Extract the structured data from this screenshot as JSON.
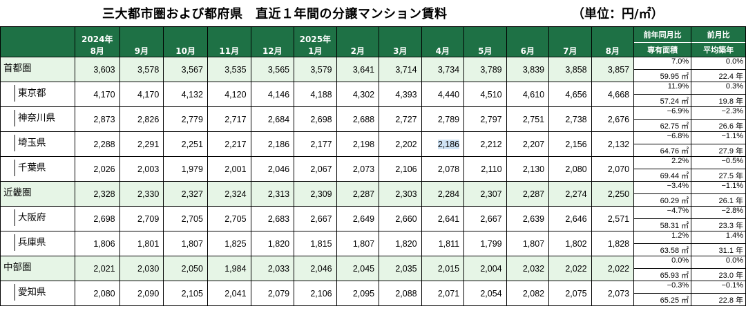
{
  "title": "三大都市圏および都府県　直近１年間の分譲マンション賃料",
  "unit": "（単位：円/㎡）",
  "header": {
    "months": [
      {
        "year": "2024年",
        "month": "8月"
      },
      {
        "year": "",
        "month": "9月"
      },
      {
        "year": "",
        "month": "10月"
      },
      {
        "year": "",
        "month": "11月"
      },
      {
        "year": "",
        "month": "12月"
      },
      {
        "year": "2025年",
        "month": "1月"
      },
      {
        "year": "",
        "month": "2月"
      },
      {
        "year": "",
        "month": "3月"
      },
      {
        "year": "",
        "month": "4月"
      },
      {
        "year": "",
        "month": "5月"
      },
      {
        "year": "",
        "month": "6月"
      },
      {
        "year": "",
        "month": "7月"
      },
      {
        "year": "",
        "month": "8月"
      }
    ],
    "yoy_label": "前年同月比",
    "mom_label": "前月比",
    "area_label": "専有面積",
    "age_label": "平均築年"
  },
  "rows": [
    {
      "name": "首都圏",
      "type": "region",
      "values": [
        "3,603",
        "3,578",
        "3,567",
        "3,535",
        "3,565",
        "3,579",
        "3,641",
        "3,714",
        "3,734",
        "3,789",
        "3,839",
        "3,858",
        "3,857"
      ],
      "yoy": "7.0%",
      "mom": "0.0%",
      "area": "59.95 ㎡",
      "age": "22.4 年"
    },
    {
      "name": "東京都",
      "type": "pref",
      "values": [
        "4,170",
        "4,170",
        "4,132",
        "4,120",
        "4,146",
        "4,188",
        "4,302",
        "4,393",
        "4,440",
        "4,510",
        "4,610",
        "4,656",
        "4,668"
      ],
      "yoy": "11.9%",
      "mom": "0.3%",
      "area": "57.24 ㎡",
      "age": "19.8 年"
    },
    {
      "name": "神奈川県",
      "type": "pref",
      "values": [
        "2,873",
        "2,826",
        "2,779",
        "2,717",
        "2,684",
        "2,698",
        "2,688",
        "2,727",
        "2,789",
        "2,797",
        "2,751",
        "2,738",
        "2,676"
      ],
      "yoy": "−6.9%",
      "mom": "−2.3%",
      "area": "62.75 ㎡",
      "age": "26.6 年"
    },
    {
      "name": "埼玉県",
      "type": "pref",
      "values": [
        "2,288",
        "2,291",
        "2,251",
        "2,217",
        "2,186",
        "2,177",
        "2,198",
        "2,202",
        "2,186",
        "2,212",
        "2,207",
        "2,156",
        "2,132"
      ],
      "yoy": "−6.8%",
      "mom": "−1.1%",
      "area": "64.76 ㎡",
      "age": "27.9 年"
    },
    {
      "name": "千葉県",
      "type": "pref",
      "values": [
        "2,026",
        "2,003",
        "1,979",
        "2,001",
        "2,046",
        "2,067",
        "2,073",
        "2,106",
        "2,078",
        "2,110",
        "2,130",
        "2,080",
        "2,070"
      ],
      "yoy": "2.2%",
      "mom": "−0.5%",
      "area": "69.44 ㎡",
      "age": "27.5 年"
    },
    {
      "name": "近畿圏",
      "type": "region",
      "values": [
        "2,328",
        "2,330",
        "2,327",
        "2,324",
        "2,313",
        "2,309",
        "2,287",
        "2,303",
        "2,284",
        "2,307",
        "2,287",
        "2,274",
        "2,250"
      ],
      "yoy": "−3.4%",
      "mom": "−1.1%",
      "area": "60.29 ㎡",
      "age": "26.1 年"
    },
    {
      "name": "大阪府",
      "type": "pref",
      "values": [
        "2,698",
        "2,709",
        "2,705",
        "2,705",
        "2,683",
        "2,667",
        "2,649",
        "2,660",
        "2,641",
        "2,667",
        "2,639",
        "2,646",
        "2,571"
      ],
      "yoy": "−4.7%",
      "mom": "−2.8%",
      "area": "58.31 ㎡",
      "age": "23.3 年"
    },
    {
      "name": "兵庫県",
      "type": "pref",
      "values": [
        "1,806",
        "1,801",
        "1,807",
        "1,825",
        "1,820",
        "1,815",
        "1,807",
        "1,820",
        "1,811",
        "1,799",
        "1,807",
        "1,802",
        "1,828"
      ],
      "yoy": "1.2%",
      "mom": "1.4%",
      "area": "63.58 ㎡",
      "age": "31.1 年"
    },
    {
      "name": "中部圏",
      "type": "region",
      "values": [
        "2,021",
        "2,030",
        "2,050",
        "1,984",
        "2,033",
        "2,046",
        "2,045",
        "2,035",
        "2,015",
        "2,004",
        "2,032",
        "2,022",
        "2,022"
      ],
      "yoy": "0.0%",
      "mom": "0.0%",
      "area": "65.93 ㎡",
      "age": "23.0 年"
    },
    {
      "name": "愛知県",
      "type": "pref",
      "values": [
        "2,080",
        "2,090",
        "2,105",
        "2,041",
        "2,079",
        "2,106",
        "2,095",
        "2,088",
        "2,071",
        "2,054",
        "2,082",
        "2,075",
        "2,073"
      ],
      "yoy": "−0.3%",
      "mom": "−0.1%",
      "area": "65.25 ㎡",
      "age": "22.8 年"
    }
  ]
}
